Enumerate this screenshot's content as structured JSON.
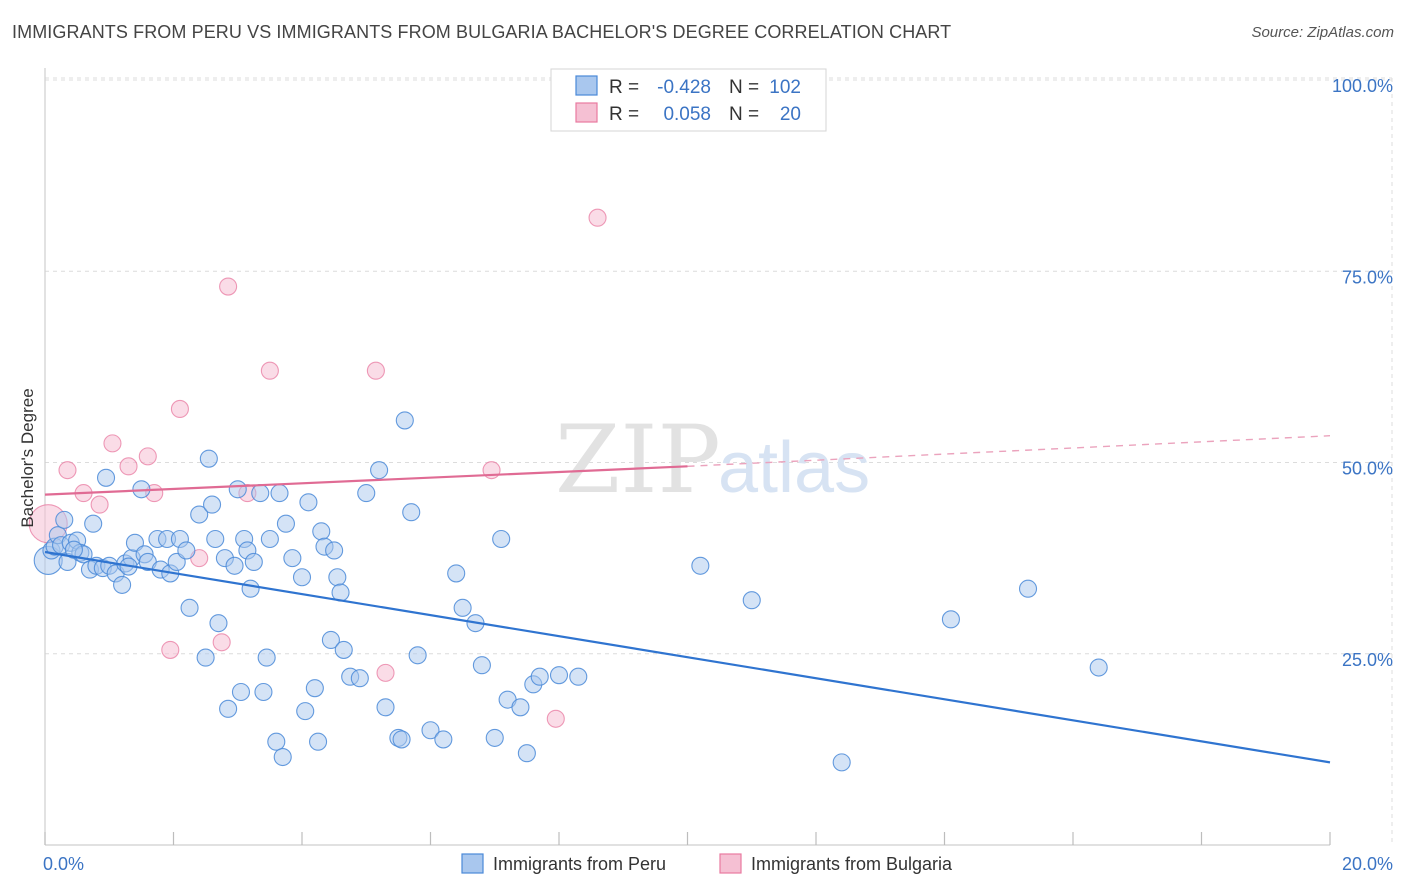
{
  "title": "IMMIGRANTS FROM PERU VS IMMIGRANTS FROM BULGARIA BACHELOR'S DEGREE CORRELATION CHART",
  "source": "Source: ZipAtlas.com",
  "watermark": {
    "zip": "ZIP",
    "atlas": "atlas"
  },
  "colors": {
    "peru": "#4a89d8",
    "peru_fill": "#a9c7ee",
    "bulgaria": "#e87aa0",
    "bulgaria_fill": "#f5c0d3",
    "grid": "#d8d8d8",
    "axis_text": "#3b74c4"
  },
  "legend": {
    "peru": {
      "r_label": "R =",
      "r_value": "-0.428",
      "n_label": "N =",
      "n_value": "102"
    },
    "bulgaria": {
      "r_label": "R =",
      "r_value": "0.058",
      "n_label": "N =",
      "n_value": "20"
    }
  },
  "chart_data": {
    "type": "scatter",
    "title": "IMMIGRANTS FROM PERU VS IMMIGRANTS FROM BULGARIA BACHELOR'S DEGREE CORRELATION CHART",
    "xlabel": "",
    "ylabel": "Bachelor's Degree",
    "xlim": [
      0,
      20
    ],
    "ylim": [
      0,
      105
    ],
    "x_tick_labels": [
      "0.0%",
      "20.0%"
    ],
    "y_ticks": [
      25,
      50,
      75,
      100
    ],
    "y_tick_labels": [
      "25.0%",
      "50.0%",
      "75.0%",
      "100.0%"
    ],
    "grid": true,
    "legend_position": "top-center",
    "series": [
      {
        "name": "Immigrants from Peru",
        "color": "#4a89d8",
        "trend": {
          "x": [
            0,
            20
          ],
          "y": [
            38.3,
            10.8
          ]
        },
        "points": [
          [
            0.05,
            37.2
          ],
          [
            0.1,
            38.5
          ],
          [
            0.15,
            39.0
          ],
          [
            0.2,
            40.5
          ],
          [
            0.25,
            39.2
          ],
          [
            0.3,
            42.5
          ],
          [
            0.35,
            37.0
          ],
          [
            0.4,
            39.5
          ],
          [
            0.5,
            39.8
          ],
          [
            0.55,
            38.2
          ],
          [
            0.6,
            38.0
          ],
          [
            0.7,
            36.0
          ],
          [
            0.75,
            42.0
          ],
          [
            0.8,
            36.5
          ],
          [
            0.9,
            36.2
          ],
          [
            0.95,
            48.0
          ],
          [
            1.0,
            36.5
          ],
          [
            1.1,
            35.5
          ],
          [
            1.2,
            34.0
          ],
          [
            1.25,
            36.8
          ],
          [
            1.35,
            37.5
          ],
          [
            1.4,
            39.5
          ],
          [
            1.5,
            46.5
          ],
          [
            1.55,
            38.0
          ],
          [
            1.6,
            37.0
          ],
          [
            1.75,
            40.0
          ],
          [
            1.8,
            36.0
          ],
          [
            1.9,
            40.0
          ],
          [
            1.95,
            35.5
          ],
          [
            2.05,
            37.0
          ],
          [
            2.1,
            40.0
          ],
          [
            2.2,
            38.5
          ],
          [
            2.25,
            31.0
          ],
          [
            2.4,
            43.2
          ],
          [
            2.5,
            24.5
          ],
          [
            2.55,
            50.5
          ],
          [
            2.6,
            44.5
          ],
          [
            2.65,
            40.0
          ],
          [
            2.7,
            29.0
          ],
          [
            2.8,
            37.5
          ],
          [
            2.85,
            17.8
          ],
          [
            2.95,
            36.5
          ],
          [
            3.0,
            46.5
          ],
          [
            3.05,
            20.0
          ],
          [
            3.1,
            40.0
          ],
          [
            3.15,
            38.5
          ],
          [
            3.2,
            33.5
          ],
          [
            3.25,
            37.0
          ],
          [
            3.35,
            46.0
          ],
          [
            3.4,
            20.0
          ],
          [
            3.45,
            24.5
          ],
          [
            3.5,
            40.0
          ],
          [
            3.6,
            13.5
          ],
          [
            3.65,
            46.0
          ],
          [
            3.7,
            11.5
          ],
          [
            3.75,
            42.0
          ],
          [
            3.85,
            37.5
          ],
          [
            4.0,
            35.0
          ],
          [
            4.05,
            17.5
          ],
          [
            4.1,
            44.8
          ],
          [
            4.2,
            20.5
          ],
          [
            4.25,
            13.5
          ],
          [
            4.3,
            41.0
          ],
          [
            4.35,
            39.0
          ],
          [
            4.45,
            26.8
          ],
          [
            4.5,
            38.5
          ],
          [
            4.55,
            35.0
          ],
          [
            4.6,
            33.0
          ],
          [
            4.65,
            25.5
          ],
          [
            4.75,
            22.0
          ],
          [
            5.0,
            46.0
          ],
          [
            5.2,
            49.0
          ],
          [
            5.3,
            18.0
          ],
          [
            5.5,
            14.0
          ],
          [
            5.6,
            55.5
          ],
          [
            5.7,
            43.5
          ],
          [
            5.8,
            24.8
          ],
          [
            6.0,
            15.0
          ],
          [
            6.4,
            35.5
          ],
          [
            6.5,
            31.0
          ],
          [
            6.7,
            29.0
          ],
          [
            6.8,
            23.5
          ],
          [
            7.0,
            14.0
          ],
          [
            7.1,
            40.0
          ],
          [
            7.2,
            19.0
          ],
          [
            7.4,
            18.0
          ],
          [
            7.5,
            12.0
          ],
          [
            7.6,
            21.0
          ],
          [
            7.7,
            22.0
          ],
          [
            8.3,
            22.0
          ],
          [
            10.2,
            36.5
          ],
          [
            11.0,
            32.0
          ],
          [
            12.4,
            10.8
          ],
          [
            14.1,
            29.5
          ],
          [
            15.3,
            33.5
          ],
          [
            16.4,
            23.2
          ],
          [
            8.0,
            22.2
          ],
          [
            4.9,
            21.8
          ],
          [
            6.2,
            13.8
          ],
          [
            5.55,
            13.8
          ],
          [
            1.3,
            36.4
          ],
          [
            0.45,
            38.6
          ]
        ]
      },
      {
        "name": "Immigrants from Bulgaria",
        "color": "#e87aa0",
        "trend": {
          "x": [
            0,
            10
          ],
          "y": [
            45.8,
            49.5
          ]
        },
        "trend_extension": {
          "x": [
            10,
            20
          ],
          "y": [
            49.5,
            53.5
          ]
        },
        "points": [
          [
            0.05,
            42.0
          ],
          [
            0.35,
            49.0
          ],
          [
            0.6,
            46.0
          ],
          [
            0.85,
            44.5
          ],
          [
            1.05,
            52.5
          ],
          [
            1.3,
            49.5
          ],
          [
            1.6,
            50.8
          ],
          [
            1.7,
            46.0
          ],
          [
            1.95,
            25.5
          ],
          [
            2.1,
            57.0
          ],
          [
            2.4,
            37.5
          ],
          [
            2.75,
            26.5
          ],
          [
            2.85,
            73.0
          ],
          [
            3.15,
            46.0
          ],
          [
            3.5,
            62.0
          ],
          [
            5.15,
            62.0
          ],
          [
            5.3,
            22.5
          ],
          [
            6.95,
            49.0
          ],
          [
            7.95,
            16.5
          ],
          [
            8.6,
            82.0
          ]
        ]
      }
    ]
  },
  "bottom_legend": [
    {
      "label": "Immigrants from Peru"
    },
    {
      "label": "Immigrants from Bulgaria"
    }
  ]
}
